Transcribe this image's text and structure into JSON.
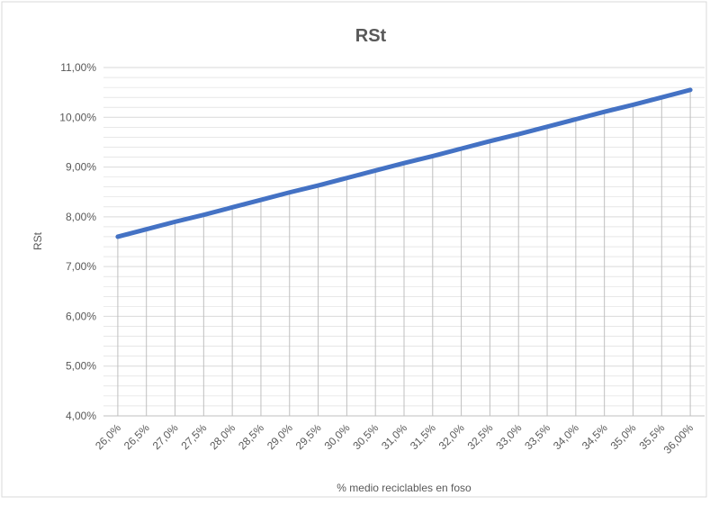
{
  "chart_data": {
    "type": "line",
    "title": "RSt",
    "xlabel": "% medio reciclables en foso",
    "ylabel": "RSt",
    "categories": [
      "26,0%",
      "26,5%",
      "27,0%",
      "27,5%",
      "28,0%",
      "28,5%",
      "29,0%",
      "29,5%",
      "30,0%",
      "30,5%",
      "31,0%",
      "31,5%",
      "32,0%",
      "32,5%",
      "33,0%",
      "33,5%",
      "34,0%",
      "34,5%",
      "35,0%",
      "35,5%",
      "36,00%"
    ],
    "series": [
      {
        "values": [
          7.6,
          7.75,
          7.9,
          8.04,
          8.19,
          8.34,
          8.49,
          8.63,
          8.78,
          8.93,
          9.08,
          9.22,
          9.37,
          9.52,
          9.66,
          9.81,
          9.96,
          10.11,
          10.25,
          10.4,
          10.55
        ]
      }
    ],
    "ylim": [
      4,
      11
    ],
    "yticks": [
      "4,00%",
      "5,00%",
      "6,00%",
      "7,00%",
      "8,00%",
      "9,00%",
      "10,00%",
      "11,00%"
    ],
    "y_minor_step": 0.2,
    "drop_lines": true,
    "grid": true,
    "colors": {
      "line": "#4472C4",
      "grid": "#d9d9d9",
      "drop_line": "#bfbfbf",
      "text": "#595959",
      "border": "#d9d9d9"
    }
  }
}
